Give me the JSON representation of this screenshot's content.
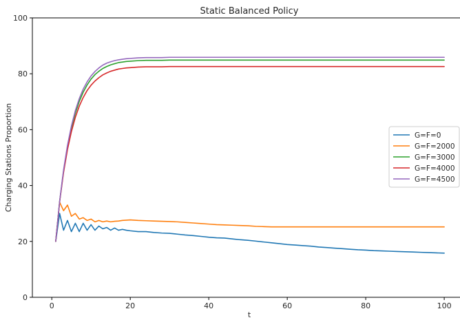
{
  "chart_data": {
    "type": "line",
    "title": "Static Balanced Policy",
    "xlabel": "t",
    "ylabel": "Charging Stations Proportion",
    "xlim": [
      -4.95,
      105.95
    ],
    "ylim": [
      0,
      100
    ],
    "xticks": [
      0,
      20,
      40,
      60,
      80,
      100
    ],
    "yticks": [
      0,
      20,
      40,
      60,
      80,
      100
    ],
    "grid": false,
    "legend_position": "center-right",
    "series": [
      {
        "name": "G=F=0",
        "color": "#1f77b4",
        "x": [
          1,
          2,
          3,
          4,
          5,
          6,
          7,
          8,
          9,
          10,
          11,
          12,
          13,
          14,
          15,
          16,
          17,
          18,
          19,
          20,
          22,
          24,
          26,
          28,
          30,
          32,
          34,
          36,
          38,
          40,
          42,
          44,
          46,
          48,
          50,
          52,
          54,
          56,
          58,
          60,
          62,
          64,
          66,
          68,
          70,
          72,
          74,
          76,
          78,
          80,
          82,
          84,
          86,
          88,
          90,
          92,
          94,
          96,
          98,
          100
        ],
        "values": [
          20,
          30,
          24,
          27.5,
          23.5,
          26.5,
          23.5,
          26.5,
          24,
          26,
          24,
          25.5,
          24.5,
          25,
          24,
          24.8,
          24,
          24.3,
          24,
          23.8,
          23.5,
          23.5,
          23.2,
          23,
          22.9,
          22.6,
          22.3,
          22.1,
          21.8,
          21.5,
          21.3,
          21.2,
          20.9,
          20.6,
          20.4,
          20.1,
          19.8,
          19.5,
          19.2,
          18.9,
          18.7,
          18.5,
          18.3,
          18,
          17.8,
          17.6,
          17.4,
          17.2,
          17,
          16.9,
          16.7,
          16.6,
          16.5,
          16.4,
          16.3,
          16.2,
          16.1,
          16,
          15.9,
          15.8
        ]
      },
      {
        "name": "G=F=2000",
        "color": "#ff7f0e",
        "x": [
          1,
          2,
          3,
          4,
          5,
          6,
          7,
          8,
          9,
          10,
          11,
          12,
          13,
          14,
          15,
          16,
          17,
          18,
          19,
          20,
          22,
          24,
          26,
          28,
          30,
          32,
          34,
          36,
          38,
          40,
          42,
          44,
          46,
          48,
          50,
          52,
          54,
          56,
          58,
          60,
          65,
          70,
          75,
          80,
          85,
          90,
          95,
          100
        ],
        "values": [
          20,
          34,
          31,
          33,
          29,
          30,
          28,
          28.5,
          27.5,
          28,
          27,
          27.5,
          27,
          27.3,
          27,
          27.2,
          27.3,
          27.5,
          27.6,
          27.7,
          27.5,
          27.4,
          27.3,
          27.2,
          27.1,
          27,
          26.8,
          26.6,
          26.4,
          26.2,
          26,
          25.9,
          25.8,
          25.7,
          25.6,
          25.4,
          25.3,
          25.2,
          25.2,
          25.2,
          25.2,
          25.2,
          25.2,
          25.2,
          25.2,
          25.2,
          25.2,
          25.2
        ]
      },
      {
        "name": "G=F=3000",
        "color": "#2ca02c",
        "x": [
          1,
          2,
          3,
          4,
          5,
          6,
          7,
          8,
          9,
          10,
          11,
          12,
          13,
          14,
          15,
          16,
          17,
          18,
          19,
          20,
          22,
          24,
          26,
          28,
          30,
          35,
          40,
          50,
          60,
          70,
          80,
          90,
          100
        ],
        "values": [
          20,
          34.3,
          45.2,
          53.8,
          60.6,
          65.9,
          70.1,
          73.4,
          76,
          78.1,
          79.7,
          80.9,
          81.9,
          82.6,
          83.2,
          83.6,
          84,
          84.2,
          84.4,
          84.5,
          84.7,
          84.8,
          84.8,
          84.8,
          84.9,
          84.9,
          84.9,
          84.9,
          84.9,
          84.9,
          84.9,
          84.9,
          84.9
        ]
      },
      {
        "name": "G=F=4000",
        "color": "#d62728",
        "x": [
          1,
          2,
          3,
          4,
          5,
          6,
          7,
          8,
          9,
          10,
          11,
          12,
          13,
          14,
          15,
          16,
          17,
          18,
          19,
          20,
          22,
          24,
          26,
          28,
          30,
          35,
          40,
          50,
          60,
          70,
          80,
          90,
          100
        ],
        "values": [
          20,
          34.2,
          44.7,
          52.9,
          59.3,
          64.4,
          68.4,
          71.5,
          74,
          75.9,
          77.4,
          78.6,
          79.6,
          80.3,
          80.9,
          81.3,
          81.7,
          81.9,
          82.1,
          82.2,
          82.4,
          82.5,
          82.5,
          82.5,
          82.6,
          82.6,
          82.6,
          82.6,
          82.6,
          82.6,
          82.6,
          82.6,
          82.6
        ]
      },
      {
        "name": "G=F=4500",
        "color": "#9467bd",
        "x": [
          1,
          2,
          3,
          4,
          5,
          6,
          7,
          8,
          9,
          10,
          11,
          12,
          13,
          14,
          15,
          16,
          17,
          18,
          19,
          20,
          22,
          24,
          26,
          28,
          30,
          35,
          40,
          50,
          60,
          70,
          80,
          90,
          100
        ],
        "values": [
          20,
          34.4,
          45.6,
          54.4,
          61.3,
          66.8,
          71.1,
          74.5,
          77.1,
          79.2,
          80.8,
          82.1,
          83.1,
          83.8,
          84.3,
          84.7,
          85,
          85.2,
          85.4,
          85.5,
          85.7,
          85.8,
          85.8,
          85.8,
          85.9,
          85.9,
          85.9,
          85.9,
          85.9,
          85.9,
          85.9,
          85.9,
          85.9
        ]
      }
    ]
  }
}
